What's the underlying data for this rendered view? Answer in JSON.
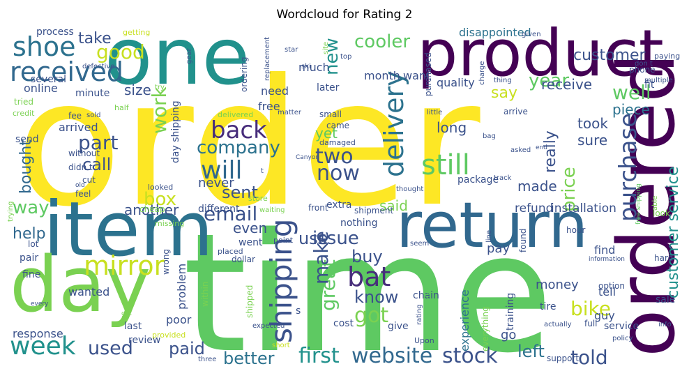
{
  "title": "Wordcloud for Rating 2",
  "words": [
    "order",
    "time",
    "one",
    "product",
    "item",
    "return",
    "day",
    "ordered",
    "received",
    "shoe",
    "mirror",
    "week",
    "used",
    "shipping",
    "delivery",
    "purchase",
    "customer service",
    "bat",
    "still",
    "cooler",
    "new",
    "good",
    "take",
    "will",
    "back",
    "company",
    "part",
    "work",
    "box",
    "call",
    "sent",
    "email",
    "two",
    "now",
    "way",
    "help",
    "another",
    "paid",
    "better",
    "first",
    "website",
    "stock",
    "left",
    "told",
    "bike",
    "great",
    "know",
    "got",
    "buy",
    "issue",
    "use",
    "said",
    "customer",
    "say",
    "year",
    "receive",
    "well",
    "piece",
    "took",
    "sure",
    "long",
    "price",
    "made",
    "really",
    "refund",
    "installation",
    "bought",
    "size",
    "yet",
    "even",
    "never",
    "arrived",
    "disappointed",
    "want",
    "quality",
    "month",
    "later",
    "much",
    "need",
    "free",
    "online",
    "several",
    "process",
    "minute",
    "fit",
    "phone",
    "problem",
    "experience",
    "pay",
    "money",
    "find",
    "tell",
    "guy",
    "go",
    "service",
    "sale",
    "wanted",
    "pair",
    "fine",
    "response",
    "review",
    "last",
    "poor",
    "give",
    "cost",
    "nothing",
    "extra",
    "different",
    "went",
    "shipment",
    "package",
    "tire",
    "training",
    "hour",
    "option",
    "front",
    "came",
    "small",
    "damaged",
    "look",
    "hard",
    "dollar",
    "placed",
    "point",
    "missing",
    "cheap",
    "feel",
    "cut",
    "looked",
    "store",
    "waiting",
    "lot",
    "send",
    "credit",
    "tried",
    "fee",
    "sold",
    "half",
    "without",
    "didn t",
    "old",
    "try",
    "getting",
    "defective",
    "delivered",
    "matter",
    "star",
    "top",
    "ski",
    "site",
    "gear",
    "replacement",
    "given",
    "paying",
    "multiple",
    "don t",
    "charge",
    "thing",
    "little",
    "arrive",
    "bag",
    "asked",
    "end",
    "able",
    "thought",
    "seem",
    "Canyon",
    "t",
    "track",
    "information",
    "actually",
    "full",
    "info",
    "policy",
    "support",
    "Upon",
    "short",
    "expected",
    "provided",
    "three",
    "gift",
    "every",
    "within",
    "shipped",
    "chain",
    "disappointing",
    "everything",
    "line",
    "found",
    "trying",
    "wrong",
    "free shipping",
    "ordering",
    "purchased",
    "day shipping",
    "s",
    "make",
    "rating"
  ]
}
